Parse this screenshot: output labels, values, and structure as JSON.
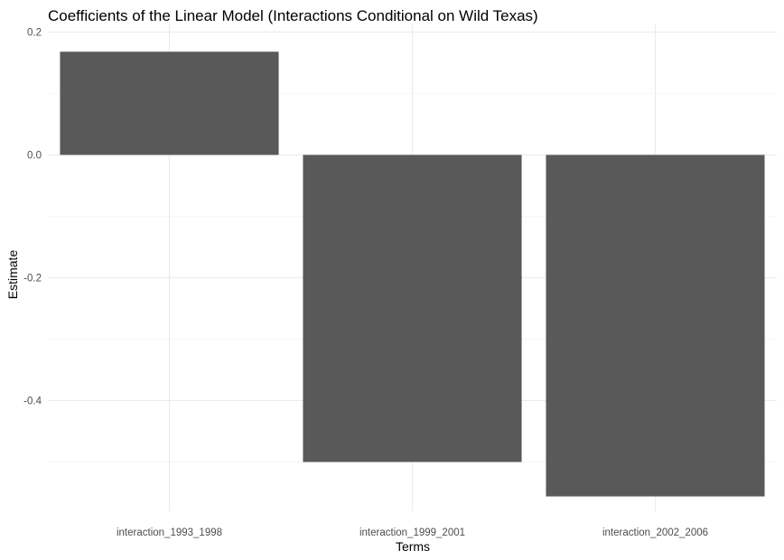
{
  "chart_data": {
    "type": "bar",
    "title": "Coefficients of the Linear Model (Interactions Conditional on Wild Texas)",
    "xlabel": "Terms",
    "ylabel": "Estimate",
    "categories": [
      "interaction_1993_1998",
      "interaction_1999_2001",
      "interaction_2002_2006"
    ],
    "values": [
      0.168,
      -0.5,
      -0.556
    ],
    "ylim": [
      -0.575,
      0.2
    ],
    "yticks": [
      0.2,
      0.0,
      -0.2,
      -0.4
    ],
    "ytick_labels": [
      "0.2",
      "0.0",
      "-0.2",
      "-0.4"
    ],
    "bar_color": "#595959",
    "grid": true,
    "legend": "none"
  }
}
